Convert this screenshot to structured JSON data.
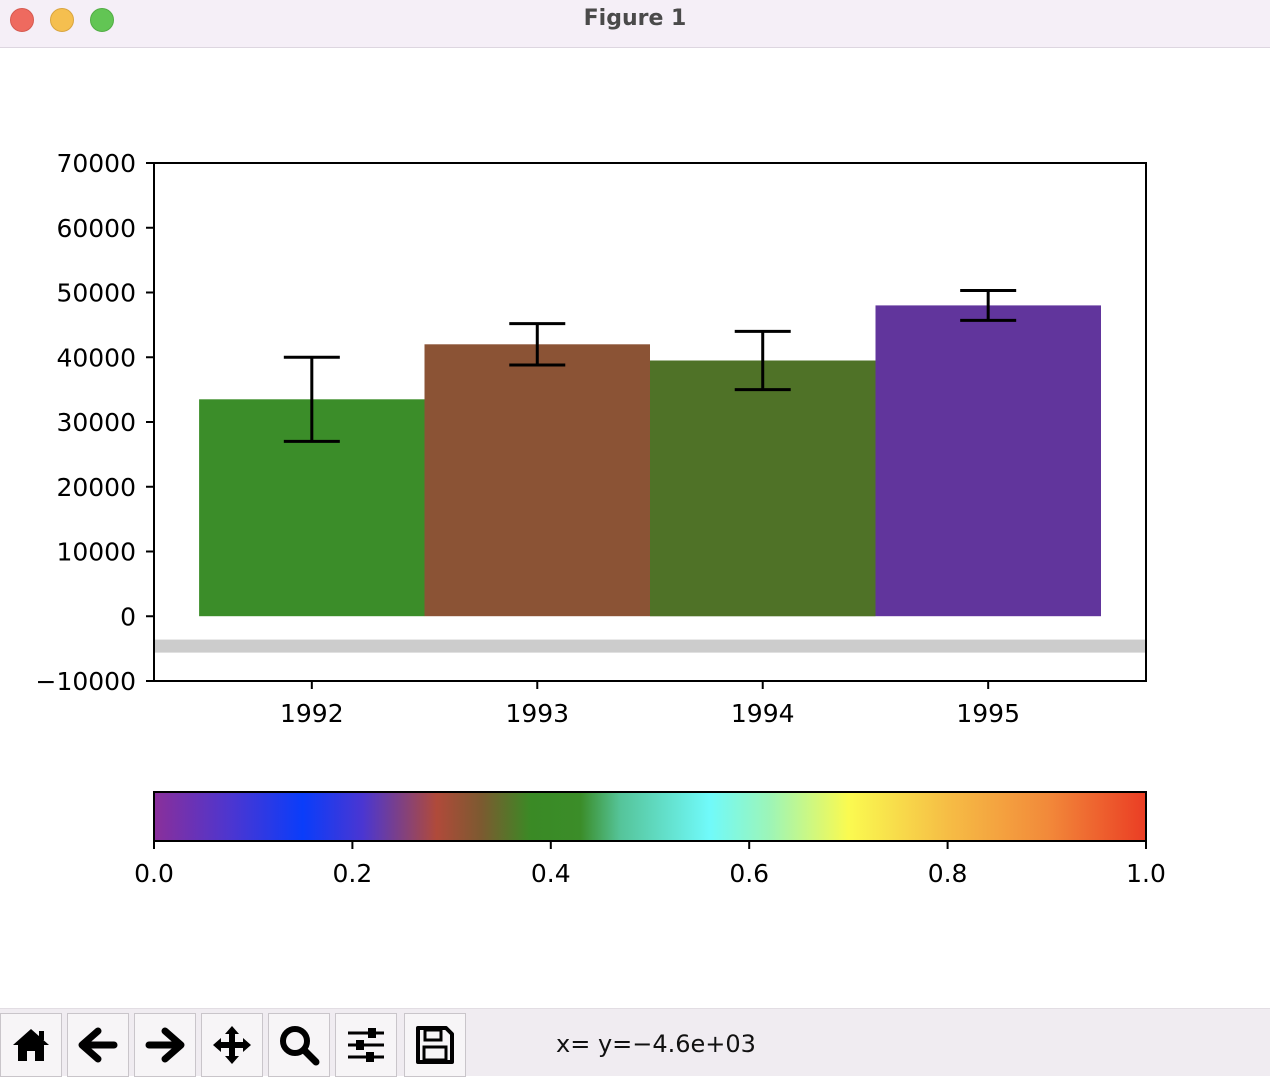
{
  "window": {
    "title": "Figure 1"
  },
  "toolbar": {
    "buttons": [
      {
        "icon": "home-icon"
      },
      {
        "icon": "back-arrow-icon"
      },
      {
        "icon": "forward-arrow-icon"
      },
      {
        "icon": "pan-icon"
      },
      {
        "icon": "zoom-icon"
      },
      {
        "icon": "subplots-config-icon"
      },
      {
        "icon": "save-icon"
      }
    ],
    "coords_text": "x= y=−4.6e+03"
  },
  "chart_data": [
    {
      "type": "bar",
      "categories": [
        "1992",
        "1993",
        "1994",
        "1995"
      ],
      "values": [
        33500,
        42000,
        39500,
        48000
      ],
      "errors": [
        6500,
        3200,
        4500,
        2300
      ],
      "colors": [
        "#3b8d29",
        "#8b5335",
        "#4f7227",
        "#61359c"
      ],
      "title": "",
      "xlabel": "",
      "ylabel": "",
      "ylim": [
        -10000,
        70000
      ],
      "yticks": [
        70000,
        60000,
        50000,
        40000,
        30000,
        20000,
        10000,
        0,
        -10000
      ],
      "ytick_labels": [
        "70000",
        "60000",
        "50000",
        "40000",
        "30000",
        "20000",
        "10000",
        "0",
        "−10000"
      ],
      "xlim": [
        1991.3,
        1995.7
      ],
      "hband": {
        "y0": -5600,
        "y1": -3600,
        "color": "#cccccc"
      },
      "grid": false
    },
    {
      "type": "colorbar",
      "orientation": "horizontal",
      "range": [
        0,
        1
      ],
      "ticks": [
        0,
        0.2,
        0.4,
        0.6,
        0.8,
        1.0
      ],
      "tick_labels": [
        "0.0",
        "0.2",
        "0.4",
        "0.6",
        "0.8",
        "1.0"
      ],
      "stops": [
        {
          "at": 0.0,
          "color": "#8a2f9a"
        },
        {
          "at": 0.08,
          "color": "#4a36d2"
        },
        {
          "at": 0.15,
          "color": "#0a3dfa"
        },
        {
          "at": 0.21,
          "color": "#4a36d2"
        },
        {
          "at": 0.285,
          "color": "#b04a3a"
        },
        {
          "at": 0.33,
          "color": "#7c5a30"
        },
        {
          "at": 0.38,
          "color": "#3a8a25"
        },
        {
          "at": 0.43,
          "color": "#3b8d29"
        },
        {
          "at": 0.47,
          "color": "#55c499"
        },
        {
          "at": 0.56,
          "color": "#70fafa"
        },
        {
          "at": 0.62,
          "color": "#9cf5b8"
        },
        {
          "at": 0.7,
          "color": "#fafa50"
        },
        {
          "at": 0.8,
          "color": "#f6bd45"
        },
        {
          "at": 0.9,
          "color": "#f28a3a"
        },
        {
          "at": 1.0,
          "color": "#ea3d24"
        }
      ]
    }
  ]
}
